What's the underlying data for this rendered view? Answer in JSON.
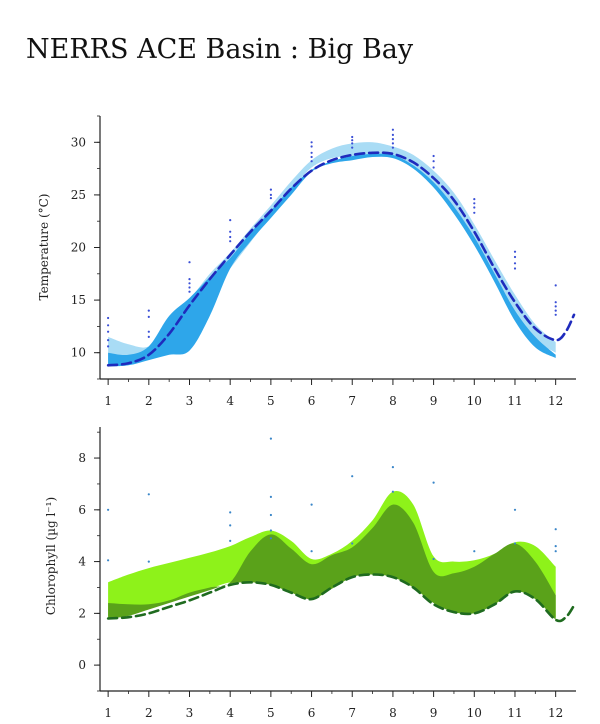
{
  "page": {
    "title": "NERRS ACE Basin : Big Bay"
  },
  "colors": {
    "temp_light": "#a9dcf5",
    "temp_band": "#2ea6ea",
    "temp_mean": "#1f2bbd",
    "temp_points": "#3a4fd6",
    "chl_light": "#8ef21a",
    "chl_band": "#5aa21a",
    "chl_mean": "#1f6b1f",
    "chl_points": "#3a86c8",
    "axis": "#222222"
  },
  "chart_data": [
    {
      "type": "area",
      "title": "",
      "xlabel": "",
      "ylabel": "Temperature (°C)",
      "xlim": [
        0.8,
        12.5
      ],
      "ylim": [
        7.5,
        32.5
      ],
      "x_ticks": [
        "1",
        "2",
        "3",
        "4",
        "5",
        "6",
        "7",
        "8",
        "9",
        "10",
        "11",
        "12"
      ],
      "y_ticks": [
        "10",
        "15",
        "20",
        "25",
        "30"
      ],
      "x": [
        1,
        1.5,
        2,
        2.5,
        3,
        3.5,
        4,
        4.5,
        5,
        5.5,
        6,
        6.5,
        7,
        7.5,
        8,
        8.5,
        9,
        9.5,
        10,
        10.5,
        11,
        11.5,
        12
      ],
      "series": [
        {
          "role": "light_range",
          "upper": [
            11.5,
            10.8,
            10.6,
            12.5,
            15.0,
            17.5,
            19.5,
            21.8,
            24.0,
            26.3,
            28.3,
            29.4,
            29.9,
            30.0,
            29.6,
            28.8,
            27.3,
            25.2,
            22.2,
            18.8,
            15.5,
            12.7,
            11.0
          ],
          "lower": [
            8.8,
            8.9,
            9.5,
            10.5,
            12.5,
            15.5,
            18.0,
            20.5,
            23.0,
            25.5,
            27.6,
            28.5,
            28.7,
            28.9,
            28.7,
            27.7,
            26.0,
            23.5,
            20.3,
            16.8,
            13.5,
            11.2,
            10.0
          ]
        },
        {
          "role": "dark_range",
          "upper": [
            10.0,
            9.8,
            10.6,
            13.5,
            15.2,
            17.2,
            19.0,
            21.4,
            23.5,
            25.7,
            27.4,
            28.2,
            28.7,
            28.9,
            28.8,
            27.8,
            26.2,
            23.9,
            21.0,
            17.5,
            14.0,
            11.5,
            9.8
          ],
          "lower": [
            8.7,
            8.8,
            9.3,
            9.8,
            10.2,
            13.5,
            18.0,
            20.6,
            22.8,
            25.0,
            27.2,
            28.0,
            28.3,
            28.6,
            28.5,
            27.5,
            25.7,
            23.2,
            20.2,
            16.7,
            13.0,
            10.5,
            9.5
          ]
        },
        {
          "role": "mean",
          "x": [
            1,
            1.5,
            2,
            2.5,
            3,
            3.5,
            4,
            4.5,
            5,
            5.5,
            6,
            6.5,
            7,
            7.5,
            8,
            8.5,
            9,
            9.5,
            10,
            10.5,
            11,
            11.5,
            12,
            12.25,
            12.45
          ],
          "values": [
            8.8,
            9.0,
            9.8,
            11.8,
            14.5,
            17.0,
            19.3,
            21.5,
            23.5,
            25.6,
            27.3,
            28.3,
            28.8,
            29.0,
            28.9,
            28.1,
            26.6,
            24.5,
            21.5,
            18.0,
            14.8,
            12.3,
            11.2,
            12.0,
            13.6
          ]
        }
      ],
      "points": [
        {
          "x": 1,
          "y": [
            13.3,
            12.6,
            12.0,
            11.2,
            10.6
          ]
        },
        {
          "x": 2,
          "y": [
            14.0,
            13.4,
            12.0,
            11.5
          ]
        },
        {
          "x": 3,
          "y": [
            18.6,
            17.0,
            16.6,
            16.2,
            15.8
          ]
        },
        {
          "x": 4,
          "y": [
            22.6,
            21.5,
            21.0,
            20.6
          ]
        },
        {
          "x": 5,
          "y": [
            25.5,
            25.0,
            24.7
          ]
        },
        {
          "x": 6,
          "y": [
            30.0,
            29.6,
            29.0,
            28.6,
            28.2
          ]
        },
        {
          "x": 7,
          "y": [
            30.5,
            30.2,
            29.9,
            29.5
          ]
        },
        {
          "x": 8,
          "y": [
            31.2,
            30.7,
            30.3,
            29.9,
            29.5
          ]
        },
        {
          "x": 9,
          "y": [
            28.7,
            28.2,
            27.6
          ]
        },
        {
          "x": 10,
          "y": [
            24.6,
            24.2,
            23.8,
            23.3
          ]
        },
        {
          "x": 11,
          "y": [
            19.6,
            19.1,
            18.5,
            18.0
          ]
        },
        {
          "x": 12,
          "y": [
            16.4,
            14.8,
            14.4,
            14.0,
            13.6
          ]
        }
      ]
    },
    {
      "type": "area",
      "title": "",
      "xlabel": "",
      "ylabel": "Chlorophyll (µg l⁻¹)",
      "xlim": [
        0.8,
        12.5
      ],
      "ylim": [
        -1.0,
        9.2
      ],
      "x_ticks": [
        "1",
        "2",
        "3",
        "4",
        "5",
        "6",
        "7",
        "8",
        "9",
        "10",
        "11",
        "12"
      ],
      "y_ticks": [
        "0",
        "2",
        "4",
        "6",
        "8"
      ],
      "x": [
        1,
        1.5,
        2,
        2.5,
        3,
        3.5,
        4,
        4.5,
        5,
        5.5,
        6,
        6.5,
        7,
        7.5,
        8,
        8.5,
        9,
        9.5,
        10,
        10.5,
        11,
        11.5,
        12
      ],
      "series": [
        {
          "role": "light_range",
          "upper": [
            3.2,
            3.5,
            3.75,
            3.95,
            4.15,
            4.35,
            4.6,
            4.95,
            5.2,
            4.8,
            4.1,
            4.3,
            4.8,
            5.6,
            6.7,
            6.2,
            4.2,
            4.0,
            4.05,
            4.3,
            4.75,
            4.6,
            3.8
          ],
          "lower": [
            1.9,
            2.0,
            2.2,
            2.45,
            2.7,
            2.95,
            3.2,
            3.25,
            3.15,
            2.85,
            2.6,
            3.0,
            3.45,
            3.55,
            3.45,
            3.05,
            2.45,
            2.1,
            2.05,
            2.4,
            2.9,
            2.6,
            1.85
          ]
        },
        {
          "role": "dark_range",
          "upper": [
            2.4,
            2.35,
            2.35,
            2.5,
            2.8,
            3.0,
            3.2,
            4.4,
            5.05,
            4.5,
            3.9,
            4.25,
            4.55,
            5.3,
            6.2,
            5.5,
            3.6,
            3.55,
            3.8,
            4.3,
            4.7,
            4.0,
            2.7
          ],
          "lower": [
            1.8,
            1.9,
            2.15,
            2.4,
            2.65,
            2.9,
            3.15,
            3.2,
            3.1,
            2.8,
            2.55,
            2.95,
            3.4,
            3.5,
            3.4,
            3.0,
            2.4,
            2.05,
            2.0,
            2.35,
            2.85,
            2.55,
            1.75
          ]
        },
        {
          "role": "mean",
          "x": [
            1,
            1.5,
            2,
            2.5,
            3,
            3.5,
            4,
            4.5,
            5,
            5.5,
            6,
            6.5,
            7,
            7.5,
            8,
            8.5,
            9,
            9.5,
            10,
            10.5,
            11,
            11.5,
            12,
            12.25,
            12.45
          ],
          "values": [
            1.8,
            1.85,
            2.0,
            2.25,
            2.5,
            2.8,
            3.1,
            3.2,
            3.1,
            2.8,
            2.55,
            3.0,
            3.4,
            3.5,
            3.4,
            3.0,
            2.35,
            2.05,
            2.0,
            2.35,
            2.85,
            2.55,
            1.75,
            1.85,
            2.3
          ]
        }
      ],
      "points": [
        {
          "x": 1,
          "y": [
            6.0,
            4.05
          ]
        },
        {
          "x": 2,
          "y": [
            6.6,
            4.0
          ]
        },
        {
          "x": 4,
          "y": [
            5.9,
            5.4,
            4.8
          ]
        },
        {
          "x": 5,
          "y": [
            8.75,
            6.5,
            5.8,
            5.2,
            4.9
          ]
        },
        {
          "x": 6,
          "y": [
            6.2,
            4.4
          ]
        },
        {
          "x": 7,
          "y": [
            7.3,
            4.7
          ]
        },
        {
          "x": 8,
          "y": [
            7.65,
            6.7
          ]
        },
        {
          "x": 9,
          "y": [
            7.05,
            4.1
          ]
        },
        {
          "x": 10,
          "y": [
            4.4
          ]
        },
        {
          "x": 11,
          "y": [
            6.0,
            4.7
          ]
        },
        {
          "x": 12,
          "y": [
            5.25,
            4.6,
            4.4
          ]
        }
      ]
    }
  ]
}
